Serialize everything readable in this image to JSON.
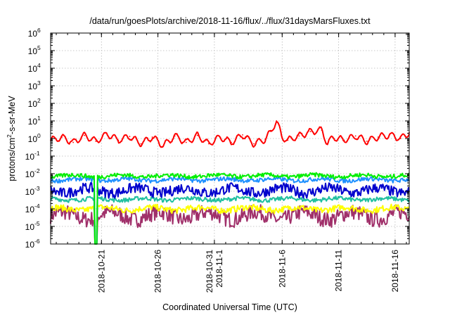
{
  "chart_data": {
    "type": "line",
    "title": "/data/run/goesPlots/archive/2018-11-16/flux/../flux/31daysMarsFluxes.txt",
    "xlabel": "Coordinated Universal Time (UTC)",
    "ylabel_base": "protons/cm",
    "ylabel_sup": "2",
    "ylabel_rest": "-s-sr-MeV",
    "y_scale": "log",
    "ylim_exp": [
      -6,
      6
    ],
    "y_tick_exps": [
      "-6",
      "-5",
      "-4",
      "-3",
      "-2",
      "-1",
      "0",
      "1",
      "2",
      "3",
      "4",
      "5",
      "6"
    ],
    "y_tick_base": "10",
    "xlim": [
      "2018-10-16T12:00",
      "2018-11-17T06:00"
    ],
    "x_ticks": [
      {
        "date": "2018-10-21",
        "lines": [
          "2018-10-21"
        ]
      },
      {
        "date": "2018-10-26",
        "lines": [
          "2018-10-26"
        ]
      },
      {
        "date": "2018-10-31",
        "lines": [
          "2018-10-31",
          "2018-11-1"
        ]
      },
      {
        "date": "2018-11-06",
        "lines": [
          "2018-11-6"
        ]
      },
      {
        "date": "2018-11-11",
        "lines": [
          "2018-11-11"
        ]
      },
      {
        "date": "2018-11-16",
        "lines": [
          "2018-11-16"
        ]
      }
    ],
    "grid": true,
    "series": [
      {
        "color": "#ff0000",
        "x": [
          "2018-10-16T12:00",
          "2018-10-17T12:00",
          "2018-10-18T12:00",
          "2018-10-19T12:00",
          "2018-10-20T12:00",
          "2018-10-21T12:00",
          "2018-10-22T12:00",
          "2018-10-23T12:00",
          "2018-10-24T12:00",
          "2018-10-25T12:00",
          "2018-10-26T12:00",
          "2018-10-27T12:00",
          "2018-10-28T12:00",
          "2018-10-29T12:00",
          "2018-10-30T12:00",
          "2018-10-31T12:00",
          "2018-11-01T12:00",
          "2018-11-02T12:00",
          "2018-11-03T12:00",
          "2018-11-04T12:00",
          "2018-11-05T00:00",
          "2018-11-05T12:00",
          "2018-11-06T00:00",
          "2018-11-06T12:00",
          "2018-11-07T12:00",
          "2018-11-08T12:00",
          "2018-11-09T12:00",
          "2018-11-10T00:00",
          "2018-11-10T12:00",
          "2018-11-11T12:00",
          "2018-11-12T12:00",
          "2018-11-13T12:00",
          "2018-11-14T12:00",
          "2018-11-15T12:00",
          "2018-11-16T12:00",
          "2018-11-17T06:00"
        ],
        "y": [
          0.8,
          1.2,
          0.6,
          1.5,
          0.7,
          1.8,
          0.8,
          1.3,
          0.5,
          1.2,
          0.4,
          1.4,
          0.6,
          1.5,
          0.5,
          1.2,
          0.6,
          1.6,
          0.5,
          0.9,
          2.5,
          10.0,
          1.2,
          0.8,
          1.4,
          2.5,
          3.0,
          0.5,
          1.2,
          0.8,
          1.4,
          0.7,
          1.2,
          1.6,
          1.0,
          2.2
        ]
      },
      {
        "color": "#00ee00",
        "level": 0.0075,
        "x_range": [
          "2018-10-16T12:00",
          "2018-11-17T06:00"
        ]
      },
      {
        "color": "#1e90ff",
        "level": 0.0045,
        "x_range": [
          "2018-10-16T12:00",
          "2018-11-17T06:00"
        ]
      },
      {
        "color": "#0000cd",
        "level": 0.0011,
        "x_range": [
          "2018-10-16T12:00",
          "2018-11-17T06:00"
        ]
      },
      {
        "color": "#20c0a0",
        "level": 0.00035,
        "x_range": [
          "2018-10-16T12:00",
          "2018-11-17T06:00"
        ]
      },
      {
        "color": "#ffff00",
        "level": 0.0001,
        "x_range": [
          "2018-10-16T12:00",
          "2018-11-17T06:00"
        ]
      },
      {
        "color": "#a0306a",
        "level": 4e-05,
        "x_range": [
          "2018-10-16T12:00",
          "2018-11-17T06:00"
        ]
      }
    ],
    "dropout": {
      "x_range": [
        "2018-10-20T00:00",
        "2018-10-21T00:00"
      ],
      "min": 1e-06
    }
  }
}
